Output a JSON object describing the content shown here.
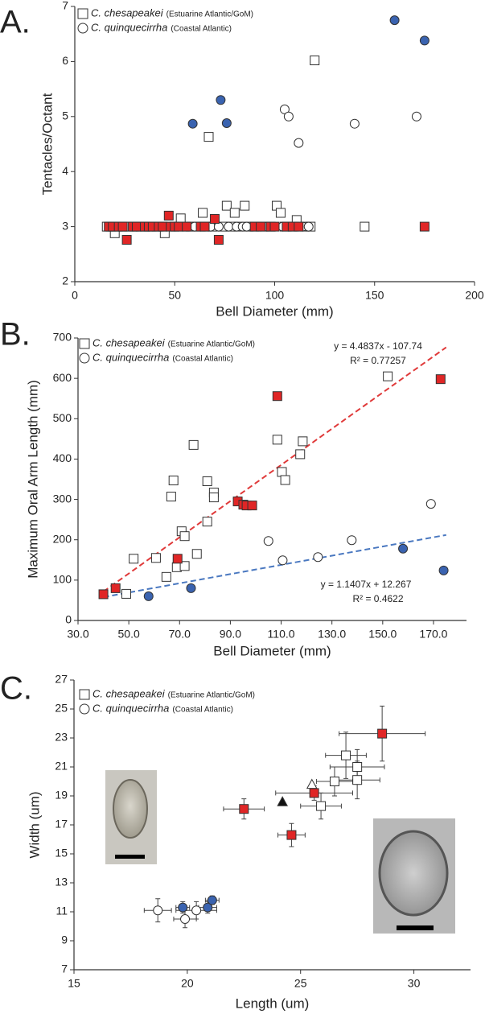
{
  "chart_data": [
    {
      "type": "scatter",
      "panel_label": "A.",
      "xlabel": "Bell Diameter (mm)",
      "ylabel": "Tentacles/Octant",
      "xlim": [
        0,
        200
      ],
      "ylim": [
        2,
        7
      ],
      "xticks": [
        0,
        50,
        100,
        150,
        200
      ],
      "yticks": [
        2,
        3,
        4,
        5,
        6,
        7
      ],
      "legend": "upper left",
      "series": [
        {
          "name": "C. chesapeakei",
          "habitat": "(Estuarine Atlantic/GoM)",
          "marker": "square",
          "color": "#ffffff",
          "x": [
            67,
            120,
            53,
            64,
            76,
            80,
            85,
            101,
            103,
            111,
            20,
            45,
            145,
            16,
            18,
            21,
            24,
            27,
            30,
            33,
            35,
            38,
            41,
            44,
            50,
            55,
            58,
            61,
            66,
            69,
            74,
            78,
            82,
            87,
            90,
            95,
            98,
            105,
            110,
            115,
            118
          ],
          "values": [
            4.63,
            6.02,
            3.15,
            3.25,
            3.38,
            3.25,
            3.38,
            3.38,
            3.25,
            3.12,
            2.88,
            2.88,
            3,
            3,
            3,
            3,
            3,
            3,
            3,
            3,
            3,
            3,
            3,
            3,
            3,
            3,
            3,
            3,
            3,
            3,
            3,
            3,
            3,
            3,
            3,
            3,
            3,
            3,
            3,
            3,
            3
          ]
        },
        {
          "name": "C. quinquecirrha",
          "habitat": "(Coastal Atlantic)",
          "marker": "circle",
          "color": "#ffffff",
          "x": [
            105,
            107,
            112,
            140,
            171,
            60,
            63,
            68,
            72,
            77,
            81,
            84,
            86,
            93,
            96,
            104,
            107,
            114,
            117
          ],
          "values": [
            5.13,
            5.0,
            4.52,
            4.87,
            5.0,
            3,
            3,
            3,
            3,
            3,
            3,
            3,
            3,
            3,
            3,
            3,
            3,
            3,
            3
          ]
        },
        {
          "marker": "square",
          "color": "#e02626",
          "x": [
            26,
            47,
            70,
            72,
            175,
            17,
            19,
            22,
            24,
            29,
            31,
            35,
            37,
            39,
            42,
            44,
            48,
            50,
            52,
            56,
            63,
            65,
            90,
            93,
            98,
            100,
            106,
            109,
            112
          ],
          "values": [
            2.76,
            3.2,
            3.14,
            2.76,
            3,
            3,
            3,
            3,
            3,
            3,
            3,
            3,
            3,
            3,
            3,
            3,
            3,
            3,
            3,
            3,
            3,
            3,
            3,
            3,
            3,
            3,
            3,
            3,
            3
          ]
        },
        {
          "marker": "circle",
          "color": "#3a63b0",
          "x": [
            59,
            73,
            76,
            160,
            175
          ],
          "values": [
            4.87,
            5.3,
            4.88,
            6.75,
            6.38
          ]
        }
      ]
    },
    {
      "type": "scatter",
      "panel_label": "B.",
      "xlabel": "Bell Diameter (mm)",
      "ylabel": "Maximum Oral Arm Length (mm)",
      "xlim": [
        30,
        183
      ],
      "ylim": [
        0,
        700
      ],
      "xticks": [
        {
          "value": 30,
          "label": "30.0"
        },
        {
          "value": 50,
          "label": "50.0"
        },
        {
          "value": 70,
          "label": "70.0"
        },
        {
          "value": 90,
          "label": "90.0"
        },
        {
          "value": 110,
          "label": "110.0"
        },
        {
          "value": 130,
          "label": "130.0"
        },
        {
          "value": 150,
          "label": "150.0"
        },
        {
          "value": 170,
          "label": "170.0"
        }
      ],
      "yticks": [
        0,
        100,
        200,
        300,
        400,
        500,
        600,
        700
      ],
      "legend": "upper left",
      "series": [
        {
          "name": "C. chesapeakei",
          "habitat": "(Estuarine Atlantic/GoM)",
          "marker": "square",
          "color": "#ffffff",
          "x": [
            49,
            51.9,
            60.7,
            64.8,
            66.7,
            67.6,
            68.9,
            70.8,
            72,
            72,
            75.5,
            76.8,
            80.9,
            80.9,
            83.5,
            83.5,
            108.5,
            110.3,
            111.6,
            117.5,
            118.5,
            152
          ],
          "values": [
            66,
            153,
            155,
            108,
            307,
            347,
            132,
            221,
            209,
            135,
            435,
            165,
            345,
            245,
            317,
            305,
            448,
            368,
            348,
            412,
            444,
            605
          ]
        },
        {
          "name": "C. quinquecirrha",
          "habitat": "(Coastal Atlantic)",
          "marker": "circle",
          "color": "#ffffff",
          "x": [
            105,
            110.6,
            124.5,
            137.8,
            169
          ],
          "values": [
            197,
            149,
            157,
            199,
            289
          ]
        },
        {
          "marker": "square",
          "color": "#e02626",
          "x": [
            40,
            44.8,
            69.2,
            92.9,
            95.1,
            96.4,
            98.6,
            108.5,
            172.8
          ],
          "values": [
            65,
            80,
            153,
            295,
            287,
            285,
            285,
            556,
            598
          ]
        },
        {
          "marker": "circle",
          "color": "#3a63b0",
          "x": [
            57.8,
            74.5,
            158,
            174
          ],
          "values": [
            60,
            80,
            178,
            124
          ]
        }
      ],
      "trendlines": [
        {
          "slope": 4.4837,
          "intercept": -107.74,
          "x_range": [
            40,
            175
          ],
          "color": "#e03a3a",
          "equation": "y = 4.4837x - 107.74",
          "r2": "R² = 0.77257"
        },
        {
          "slope": 1.1407,
          "intercept": 12.267,
          "x_range": [
            40,
            175
          ],
          "color": "#4a78c0",
          "equation": "y = 1.1407x + 12.267",
          "r2": "R² = 0.4622"
        }
      ]
    },
    {
      "type": "errorbar",
      "panel_label": "C.",
      "xlabel": "Length (um)",
      "ylabel": "Width (um)",
      "xlim": [
        15,
        32.5
      ],
      "ylim": [
        7,
        27
      ],
      "xticks": [
        15,
        20,
        25,
        30
      ],
      "yticks": [
        7,
        9,
        11,
        13,
        15,
        17,
        19,
        21,
        23,
        25,
        27
      ],
      "legend": "upper left",
      "series": [
        {
          "name": "C. chesapeakei",
          "habitat": "(Estuarine Atlantic/GoM)",
          "marker": "square",
          "color": "#ffffff",
          "x": [
            25.9,
            26.5,
            27,
            27.5,
            27.5
          ],
          "values": [
            18.3,
            20.0,
            21.8,
            21.0,
            20.1
          ],
          "x_err": [
            0.9,
            0.8,
            0.9,
            1.2,
            1.0
          ],
          "y_err": [
            0.9,
            1.0,
            1.6,
            1.2,
            1.3
          ]
        },
        {
          "name": "C. quinquecirrha",
          "habitat": "(Coastal Atlantic)",
          "marker": "circle",
          "color": "#ffffff",
          "x": [
            18.7,
            19.9,
            20.4
          ],
          "values": [
            11.1,
            10.5,
            11.1
          ],
          "x_err": [
            0.6,
            0.5,
            0.9
          ],
          "y_err": [
            0.8,
            0.6,
            0.6
          ]
        },
        {
          "marker": "square",
          "color": "#e02626",
          "x": [
            22.5,
            24.6,
            25.6,
            28.6
          ],
          "values": [
            18.1,
            16.3,
            19.2,
            23.3
          ],
          "x_err": [
            0.9,
            0.6,
            1.7,
            1.9
          ],
          "y_err": [
            0.7,
            0.8,
            0.5,
            1.9
          ]
        },
        {
          "marker": "circle",
          "color": "#3a63b0",
          "x": [
            19.8,
            20.9,
            21.1
          ],
          "values": [
            11.3,
            11.3,
            11.8
          ],
          "x_err": [
            0.3,
            0.4,
            0.3
          ],
          "y_err": [
            0.4,
            0.4,
            0.3
          ]
        },
        {
          "marker": "triangle",
          "color": "#ffffff",
          "x": [
            25.5
          ],
          "values": [
            19.8
          ]
        },
        {
          "marker": "triangle",
          "color": "#111111",
          "x": [
            24.2
          ],
          "values": [
            18.6
          ]
        }
      ]
    }
  ]
}
